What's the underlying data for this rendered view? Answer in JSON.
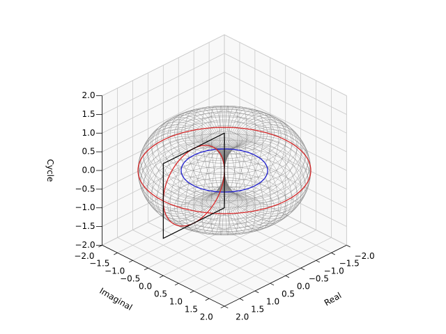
{
  "chart_data": {
    "type": "torus3d",
    "x_label": "Real",
    "y_label": "Imaginal",
    "z_label": "Cycle",
    "xlim": [
      -2,
      2
    ],
    "ylim": [
      -2,
      2
    ],
    "zlim": [
      -2,
      2
    ],
    "xticks": [
      {
        "value": -2,
        "label": "−2.0"
      },
      {
        "value": -1.5,
        "label": "−1.5"
      },
      {
        "value": -1,
        "label": "−1.0"
      },
      {
        "value": -0.5,
        "label": "−0.5"
      },
      {
        "value": 0,
        "label": "0.0"
      },
      0.5,
      {
        "value": 1,
        "label": "1.0"
      },
      1.5,
      {
        "value": 2,
        "label": "2.0"
      }
    ],
    "yticks": [
      {
        "value": -2,
        "label": "−2.0"
      },
      {
        "value": -1.5,
        "label": "−1.5"
      },
      {
        "value": -1,
        "label": "−1.0"
      },
      {
        "value": -0.5,
        "label": "−0.5"
      },
      {
        "value": 0,
        "label": "0.0"
      },
      0.5,
      {
        "value": 1,
        "label": "1.0"
      },
      1.5,
      {
        "value": 2,
        "label": "2.0"
      }
    ],
    "zticks": [
      {
        "value": -2,
        "label": "−2.0"
      },
      {
        "value": -1.5,
        "label": "−1.5"
      },
      {
        "value": -1,
        "label": "−1.0"
      },
      {
        "value": -0.5,
        "label": "−0.5"
      },
      {
        "value": 0,
        "label": "0.0"
      },
      0.5,
      {
        "value": 1,
        "label": "1.0"
      },
      1.5,
      {
        "value": 2,
        "label": "2.0"
      }
    ],
    "grid": true,
    "torus": {
      "major_radius": 1,
      "minor_radius": 1,
      "color": "#808080"
    },
    "outer_circle_color": "#d62728",
    "section_circle_color": "#d62728",
    "center_circle_color": "#1f1fd0",
    "section_square_color": "#000000"
  }
}
